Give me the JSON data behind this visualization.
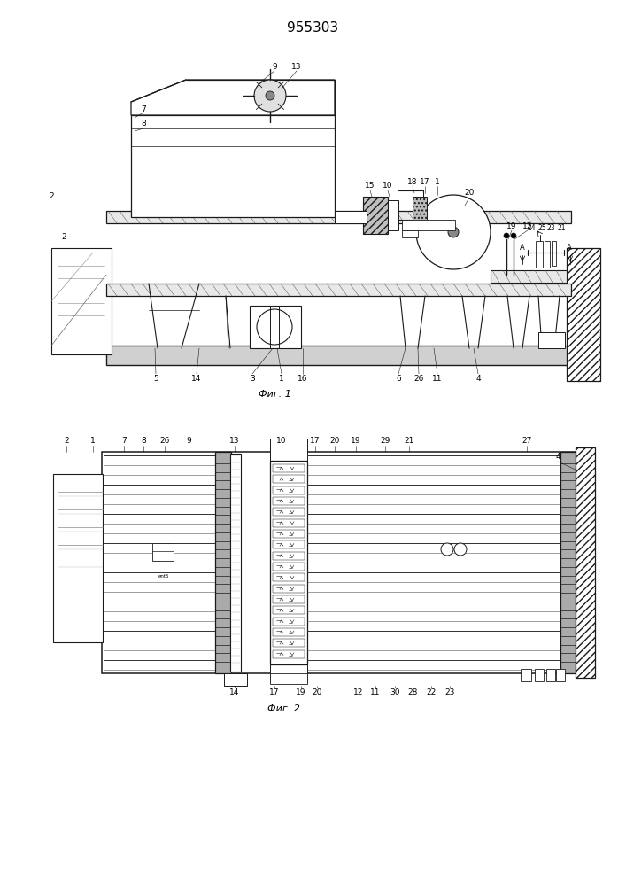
{
  "title": "955303",
  "fig1_caption": "Фиг. 1",
  "fig2_caption": "Фиг. 2",
  "bg_color": "#ffffff",
  "lc": "#1a1a1a",
  "lw": 0.7
}
